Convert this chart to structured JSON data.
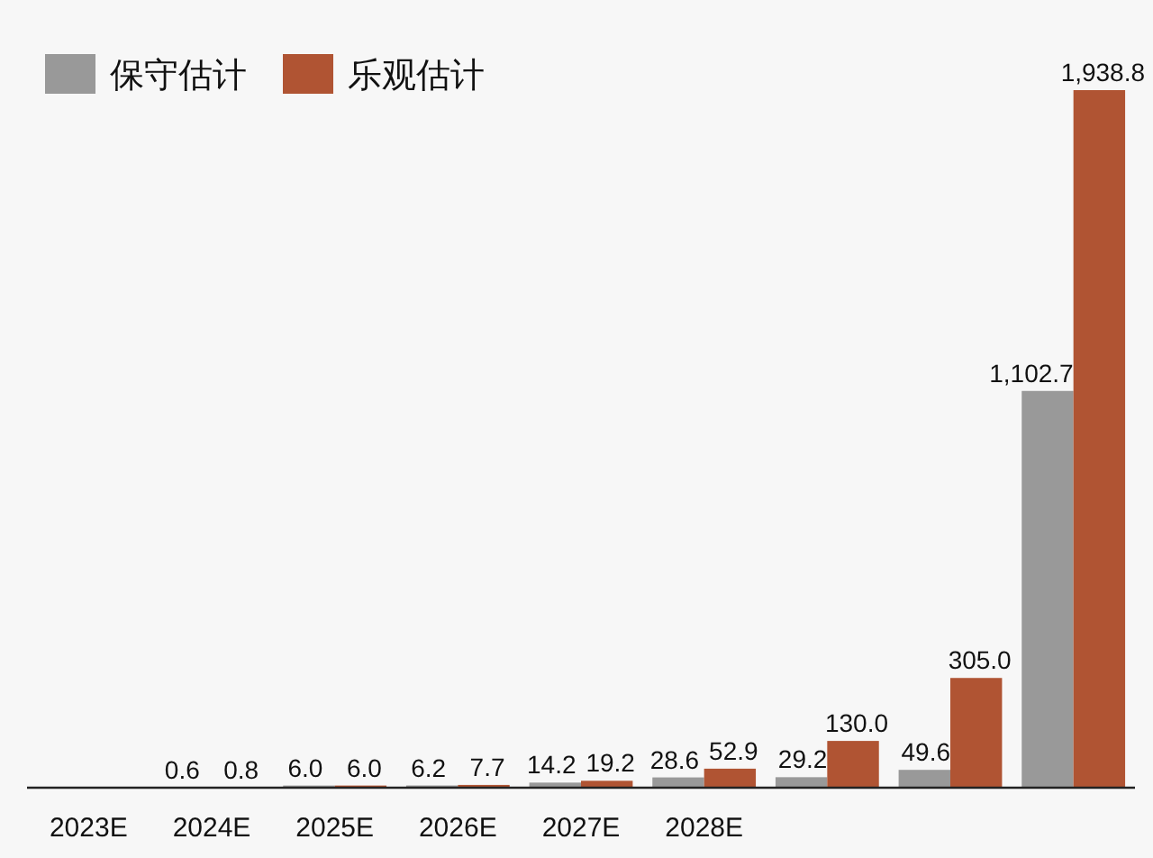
{
  "chart_data": {
    "type": "bar",
    "categories": [
      "2023E",
      "2024E",
      "2025E",
      "2026E",
      "2027E",
      "2028E",
      null,
      null,
      null
    ],
    "legend": "top left",
    "series": [
      {
        "name": "保守估计",
        "color": "#999999",
        "values": [
          null,
          0.6,
          6.0,
          6.2,
          14.2,
          28.6,
          29.2,
          49.6,
          1102.7
        ],
        "value_labels": [
          null,
          "0.6",
          "6.0",
          "6.2",
          "14.2",
          "28.6",
          "29.2",
          "49.6",
          "1,102.7"
        ]
      },
      {
        "name": "乐观估计",
        "color": "#b05433",
        "values": [
          null,
          0.8,
          6.0,
          7.7,
          19.2,
          52.9,
          130.0,
          305.0,
          1938.8
        ],
        "value_labels": [
          null,
          "0.8",
          "6.0",
          "7.7",
          "19.2",
          "52.9",
          "130.0",
          "305.0",
          "1,938.8"
        ]
      }
    ]
  }
}
